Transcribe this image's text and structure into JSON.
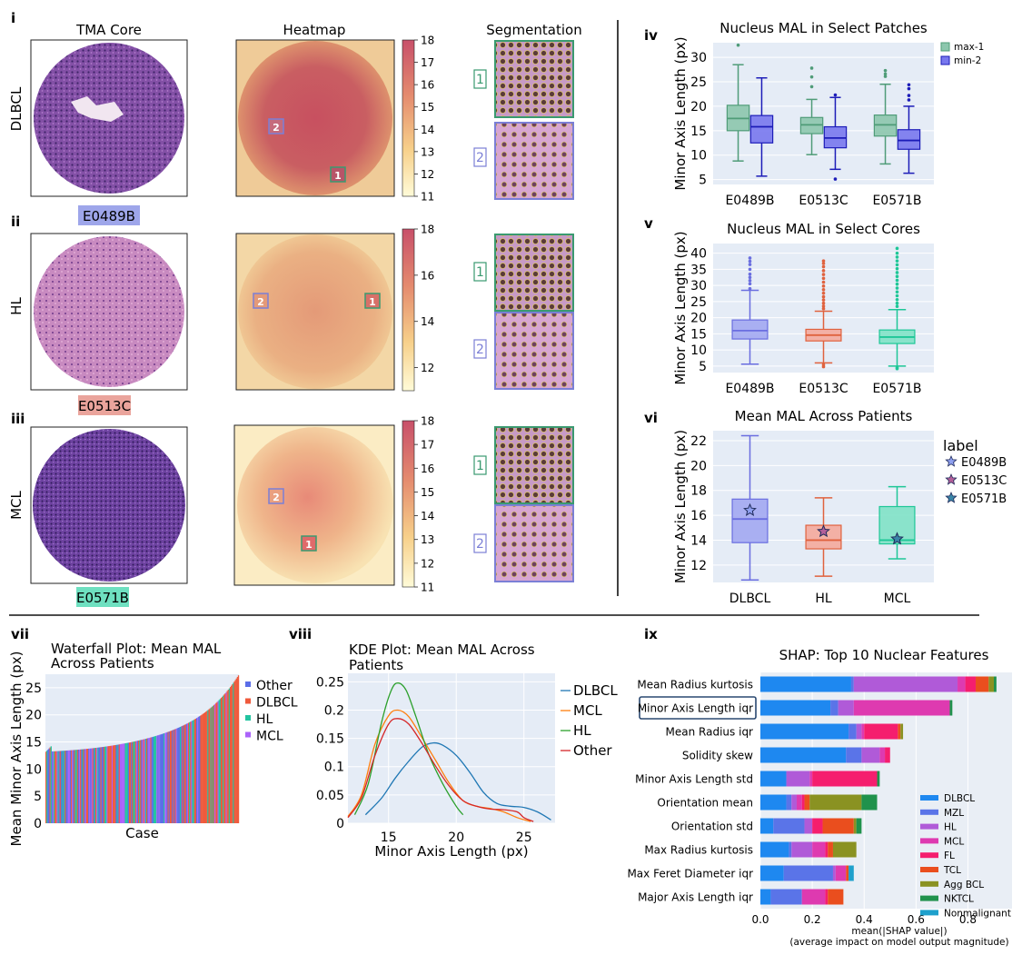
{
  "figure": {
    "panel_labels": [
      "i",
      "ii",
      "iii",
      "iv",
      "v",
      "vi",
      "vii",
      "viii",
      "ix"
    ],
    "col_titles": {
      "core": "TMA Core",
      "heatmap": "Heatmap",
      "segmentation": "Segmentation"
    },
    "rows": [
      {
        "label": "DLBCL",
        "case": "E0489B",
        "case_color": "#9ea6ea",
        "tissue": "#8a55a8",
        "cbar_ticks": [
          "18",
          "17",
          "16",
          "15",
          "14",
          "13",
          "12",
          "11"
        ],
        "patches": [
          {
            "id": "1",
            "color": "#3a9a70"
          },
          {
            "id": "2",
            "color": "#7b7fd6"
          }
        ]
      },
      {
        "label": "HL",
        "case": "E0513C",
        "case_color": "#eaa49c",
        "tissue": "#c786b8",
        "cbar_ticks": [
          "18",
          "16",
          "14",
          "12"
        ],
        "patches": [
          {
            "id": "1",
            "color": "#3a9a70"
          },
          {
            "id": "2",
            "color": "#7b7fd6"
          }
        ]
      },
      {
        "label": "MCL",
        "case": "E0571B",
        "case_color": "#6ee0c0",
        "tissue": "#7348a0",
        "cbar_ticks": [
          "18",
          "17",
          "16",
          "15",
          "14",
          "13",
          "12",
          "11"
        ],
        "patches": [
          {
            "id": "1",
            "color": "#3a9a70"
          },
          {
            "id": "2",
            "color": "#7b7fd6"
          }
        ]
      }
    ]
  },
  "chart_data": [
    {
      "id": "iv",
      "type": "box",
      "title": "Nucleus MAL in Select Patches",
      "ylabel": "Minor Axis Length (px)",
      "categories": [
        "E0489B",
        "E0513C",
        "E0571B"
      ],
      "ylim": [
        4,
        33
      ],
      "yticks": [
        5,
        10,
        15,
        20,
        25,
        30
      ],
      "legend": [
        "max-1",
        "min-2"
      ],
      "series": [
        {
          "name": "max-1",
          "fill": "#8cc7ad",
          "stroke": "#4f9c78",
          "boxes": [
            {
              "min": 8.8,
              "q1": 15,
              "median": 17.5,
              "q3": 20.2,
              "max": 28.5,
              "outliers": [
                32.5
              ]
            },
            {
              "min": 10.1,
              "q1": 14.4,
              "median": 16.2,
              "q3": 17.7,
              "max": 21.4,
              "outliers": [
                27.8,
                26.0,
                24.0
              ]
            },
            {
              "min": 8.2,
              "q1": 13.9,
              "median": 16.2,
              "q3": 18.2,
              "max": 24.5,
              "outliers": [
                27.3,
                26.6,
                26.1
              ]
            }
          ]
        },
        {
          "name": "min-2",
          "fill": "#7878ee",
          "stroke": "#1c1cb8",
          "boxes": [
            {
              "min": 5.7,
              "q1": 12.5,
              "median": 15.8,
              "q3": 18.1,
              "max": 25.8,
              "outliers": []
            },
            {
              "min": 7.1,
              "q1": 11.5,
              "median": 13.5,
              "q3": 15.8,
              "max": 21.8,
              "outliers": [
                22.3,
                5.1
              ]
            },
            {
              "min": 6.3,
              "q1": 11.2,
              "median": 13,
              "q3": 15.2,
              "max": 20,
              "outliers": [
                21.3,
                22.2,
                24.4,
                23.6
              ]
            }
          ]
        }
      ]
    },
    {
      "id": "v",
      "type": "box",
      "title": "Nucleus MAL in Select Cores",
      "ylabel": "Minor Axis Length (px)",
      "categories": [
        "E0489B",
        "E0513C",
        "E0571B"
      ],
      "ylim": [
        3,
        43
      ],
      "yticks": [
        5,
        10,
        15,
        20,
        25,
        30,
        35,
        40
      ],
      "series": [
        {
          "name": "cores",
          "fill": "#a2a8f2",
          "stroke": "#6a6ee0",
          "colors": [
            [
              "#a2a8f2",
              "#6a6ee0"
            ],
            [
              "#f4aa9c",
              "#e0623e"
            ],
            [
              "#7fe2c6",
              "#1ec797"
            ]
          ],
          "boxes": [
            {
              "min": 5.6,
              "q1": 13.4,
              "median": 16,
              "q3": 19.3,
              "max": 28.5,
              "outliers": [
                29,
                30.5,
                31.5,
                32.5,
                33.5,
                35,
                36.5,
                37.5,
                38.5
              ]
            },
            {
              "min": 6,
              "q1": 12.8,
              "median": 14.6,
              "q3": 16.4,
              "max": 22,
              "outliers": [
                22.8,
                23.6,
                24.5,
                25.5,
                26.5,
                27.6,
                28.7,
                29.8,
                31,
                32.2,
                33.4,
                34.6,
                35.8,
                36.8,
                37.6,
                5.4,
                4.8
              ]
            },
            {
              "min": 5,
              "q1": 12,
              "median": 14,
              "q3": 16.2,
              "max": 22.5,
              "outliers": [
                23.5,
                24.5,
                25.6,
                26.8,
                28,
                29.2,
                30.4,
                31.6,
                32.8,
                34,
                35.2,
                36.4,
                37.6,
                38.8,
                40,
                41.5,
                4.5,
                4.2
              ]
            }
          ]
        }
      ]
    },
    {
      "id": "vi",
      "type": "box",
      "title": "Mean MAL Across Patients",
      "ylabel": "Minor Axis Length (px)",
      "categories": [
        "DLBCL",
        "HL",
        "MCL"
      ],
      "ylim": [
        10.6,
        22.8
      ],
      "yticks": [
        12,
        14,
        16,
        18,
        20,
        22
      ],
      "legend_title": "label",
      "legend": [
        "E0489B",
        "E0513C",
        "E0571B"
      ],
      "star_colors": [
        "#8fa0f0",
        "#b4609a",
        "#3a86a8"
      ],
      "series": [
        {
          "name": "groups",
          "colors": [
            [
              "#a2a8f2",
              "#6a6ee0"
            ],
            [
              "#f4aa9c",
              "#e0623e"
            ],
            [
              "#7fe2c6",
              "#1ec797"
            ]
          ],
          "boxes": [
            {
              "min": 10.8,
              "q1": 13.8,
              "median": 15.7,
              "q3": 17.3,
              "max": 22.4,
              "outliers": []
            },
            {
              "min": 11.1,
              "q1": 13.3,
              "median": 14,
              "q3": 15.2,
              "max": 17.4,
              "outliers": []
            },
            {
              "min": 12.5,
              "q1": 13.7,
              "median": 14,
              "q3": 16.7,
              "max": 18.3,
              "outliers": []
            }
          ]
        }
      ],
      "stars": [
        16.4,
        14.7,
        14.1
      ]
    },
    {
      "id": "vii",
      "type": "bar",
      "title": "Waterfall Plot: Mean MAL Across Patients",
      "title_lines": [
        "Waterfall Plot: Mean MAL",
        "Across Patients"
      ],
      "xlabel": "Case",
      "ylabel": "Mean Minor Axis Length (px)",
      "ylim": [
        0,
        27.5
      ],
      "yticks": [
        0,
        5,
        10,
        15,
        20,
        25
      ],
      "n_cases": 190,
      "value_range": [
        13.2,
        27.3
      ],
      "legend": [
        {
          "name": "Other",
          "color": "#5b6ee8"
        },
        {
          "name": "DLBCL",
          "color": "#ef5a3c"
        },
        {
          "name": "HL",
          "color": "#22c4a0"
        },
        {
          "name": "MCL",
          "color": "#ab63fa"
        }
      ]
    },
    {
      "id": "viii",
      "type": "line",
      "title": "KDE Plot: Mean MAL Across Patients",
      "title_lines": [
        "KDE Plot: Mean MAL Across",
        "Patients"
      ],
      "xlabel": "Minor Axis Length (px)",
      "xlim": [
        12,
        27.3
      ],
      "ylim": [
        0,
        0.265
      ],
      "xticks": [
        15,
        20,
        25
      ],
      "yticks": [
        0,
        0.05,
        0.1,
        0.15,
        0.2,
        0.25
      ],
      "ytick_labels": [
        "0",
        "0.05",
        "0.1",
        "0.15",
        "0.2",
        "0.25"
      ],
      "series": [
        {
          "name": "DLBCL",
          "color": "#1f77b4",
          "x": [
            13.3,
            14.5,
            15.5,
            16.5,
            17.5,
            18.3,
            19,
            20,
            21,
            22,
            23,
            24,
            25,
            26,
            27
          ],
          "y": [
            0.015,
            0.045,
            0.08,
            0.11,
            0.135,
            0.142,
            0.138,
            0.12,
            0.09,
            0.055,
            0.035,
            0.03,
            0.028,
            0.02,
            0.006
          ]
        },
        {
          "name": "MCL",
          "color": "#ff7f0e",
          "x": [
            12,
            13,
            14,
            15,
            15.7,
            16.5,
            17.5,
            18.5,
            19.5,
            20.5,
            21.5,
            22.5,
            23.5,
            24.5,
            25.5
          ],
          "y": [
            0.012,
            0.05,
            0.14,
            0.19,
            0.2,
            0.188,
            0.15,
            0.11,
            0.07,
            0.04,
            0.03,
            0.026,
            0.02,
            0.01,
            0.003
          ]
        },
        {
          "name": "HL",
          "color": "#2ca02c",
          "x": [
            12.5,
            13.5,
            14.5,
            15.2,
            15.7,
            16.3,
            17,
            18,
            19,
            20,
            20.5
          ],
          "y": [
            0.015,
            0.07,
            0.18,
            0.235,
            0.248,
            0.235,
            0.19,
            0.12,
            0.07,
            0.03,
            0.015
          ]
        },
        {
          "name": "Other",
          "color": "#d62728",
          "x": [
            12,
            13,
            14,
            15,
            15.7,
            16.5,
            17.5,
            18.5,
            19.5,
            20.5,
            21.5,
            22.5,
            23.5,
            24.5,
            25,
            25.7
          ],
          "y": [
            0.01,
            0.045,
            0.12,
            0.175,
            0.185,
            0.175,
            0.14,
            0.1,
            0.065,
            0.04,
            0.03,
            0.025,
            0.024,
            0.02,
            0.01,
            0.003
          ]
        }
      ]
    },
    {
      "id": "ix",
      "type": "bar",
      "orientation": "horizontal",
      "stacked": true,
      "title": "SHAP: Top 10 Nuclear Features",
      "xlabel_lines": [
        "mean(|SHAP value|)",
        "(average impact on model output magnitude)"
      ],
      "xlim": [
        0,
        0.97
      ],
      "xticks": [
        0,
        0.2,
        0.4,
        0.6,
        0.8
      ],
      "xtick_labels": [
        "0.0",
        "0.2",
        "0.4",
        "0.6",
        "0.8"
      ],
      "highlight": "Minor Axis Length iqr",
      "classes": [
        {
          "name": "DLBCL",
          "color": "#1e88f0"
        },
        {
          "name": "MZL",
          "color": "#5a74e8"
        },
        {
          "name": "HL",
          "color": "#b05ad8"
        },
        {
          "name": "MCL",
          "color": "#de3ab0"
        },
        {
          "name": "FL",
          "color": "#f51e6e"
        },
        {
          "name": "TCL",
          "color": "#ea4e1e"
        },
        {
          "name": "Agg BCL",
          "color": "#8a9222"
        },
        {
          "name": "NKTCL",
          "color": "#20924c"
        },
        {
          "name": "Nonmalignant",
          "color": "#1ea0cc"
        }
      ],
      "features": [
        {
          "name": "Mean Radius kurtosis",
          "values": [
            0.35,
            0.01,
            0.4,
            0.03,
            0.04,
            0.05,
            0.02,
            0.01,
            0
          ]
        },
        {
          "name": "Minor Axis Length iqr",
          "values": [
            0.27,
            0.03,
            0.06,
            0.37,
            0,
            0,
            0,
            0.01,
            0
          ]
        },
        {
          "name": "Mean Radius iqr",
          "values": [
            0.34,
            0.03,
            0.02,
            0.01,
            0.13,
            0.01,
            0.01,
            0,
            0
          ]
        },
        {
          "name": "Solidity skew",
          "values": [
            0.33,
            0.06,
            0.07,
            0.02,
            0.02,
            0,
            0,
            0,
            0
          ]
        },
        {
          "name": "Minor Axis Length std",
          "values": [
            0.1,
            0,
            0.09,
            0.01,
            0.25,
            0,
            0,
            0.01,
            0
          ]
        },
        {
          "name": "Orientation mean",
          "values": [
            0.1,
            0.02,
            0.02,
            0.02,
            0.01,
            0.02,
            0.2,
            0.06,
            0
          ]
        },
        {
          "name": "Orientation std",
          "values": [
            0.05,
            0.12,
            0.03,
            0,
            0.04,
            0.12,
            0.01,
            0.02,
            0
          ]
        },
        {
          "name": "Max Radius kurtosis",
          "values": [
            0.11,
            0.01,
            0.08,
            0.05,
            0.01,
            0.02,
            0.09,
            0,
            0
          ]
        },
        {
          "name": "Max Feret Diameter iqr",
          "values": [
            0.09,
            0.19,
            0.01,
            0.04,
            0,
            0.01,
            0,
            0,
            0.02
          ]
        },
        {
          "name": "Major Axis Length iqr",
          "values": [
            0.04,
            0.12,
            0,
            0.09,
            0.01,
            0.06,
            0,
            0,
            0
          ]
        }
      ]
    }
  ]
}
